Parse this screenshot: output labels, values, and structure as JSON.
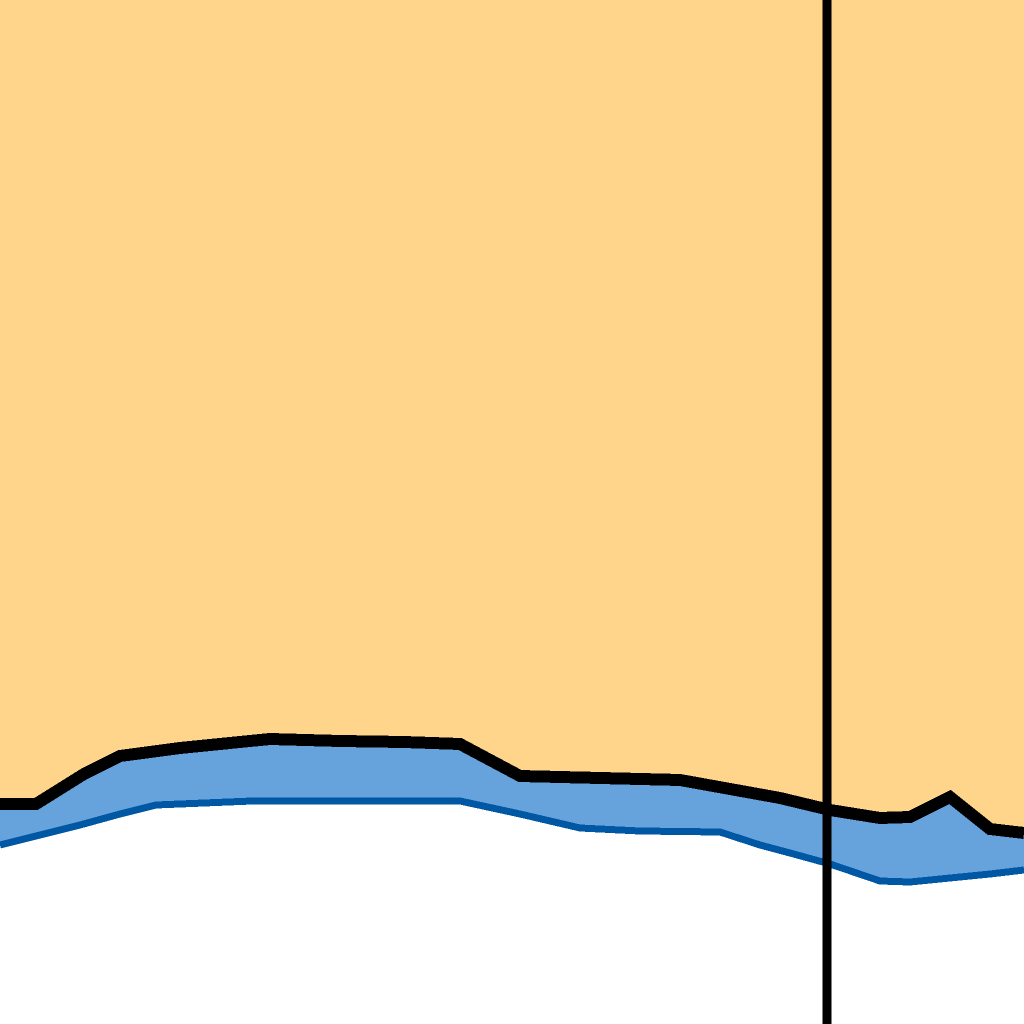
{
  "map": {
    "colors": {
      "land": "#FFD58C",
      "shallow_water": "#66A3DD",
      "water_outline": "#0057A3",
      "deep_water": "#FFFFFF",
      "boundary": "#000000"
    }
  }
}
